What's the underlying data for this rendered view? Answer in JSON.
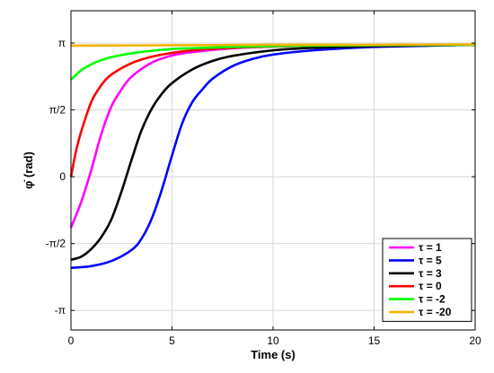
{
  "chart_data": {
    "type": "line",
    "xlabel": "Time (s)",
    "ylabel": "φ̇ (rad)",
    "xlim": [
      0,
      20
    ],
    "ylim": [
      -3.6,
      3.9
    ],
    "xticks": [
      0,
      5,
      10,
      15,
      20
    ],
    "xtick_labels": [
      "0",
      "5",
      "10",
      "15",
      "20"
    ],
    "yticks": [
      -3.1416,
      -1.5708,
      0,
      1.5708,
      3.1416
    ],
    "ytick_labels": [
      "-π",
      "-π/2",
      "0",
      "π/2",
      "π"
    ],
    "grid": true,
    "legend_position": "bottom-right",
    "series": [
      {
        "name": "τ = 1",
        "color": "#ff00ff",
        "x": [
          0,
          0.5,
          1,
          1.5,
          2,
          2.5,
          3,
          4,
          5,
          6,
          8,
          10,
          12,
          15,
          20
        ],
        "y": [
          -1.2,
          -0.6,
          0.15,
          1.0,
          1.65,
          2.05,
          2.35,
          2.68,
          2.85,
          2.93,
          3.02,
          3.06,
          3.08,
          3.09,
          3.1
        ]
      },
      {
        "name": "τ = 5",
        "color": "#0000ff",
        "x": [
          0,
          1,
          2,
          3,
          3.5,
          4,
          4.5,
          5,
          5.5,
          6,
          6.5,
          7,
          8,
          9,
          10,
          12,
          15,
          20
        ],
        "y": [
          -2.14,
          -2.1,
          -1.98,
          -1.72,
          -1.45,
          -0.98,
          -0.3,
          0.5,
          1.25,
          1.75,
          2.05,
          2.3,
          2.6,
          2.77,
          2.87,
          2.97,
          3.05,
          3.1
        ]
      },
      {
        "name": "τ = 3",
        "color": "#000000",
        "x": [
          0,
          0.5,
          1,
          1.5,
          2,
          2.5,
          3,
          3.5,
          4,
          4.5,
          5,
          6,
          7,
          8,
          10,
          12,
          15,
          20
        ],
        "y": [
          -1.95,
          -1.88,
          -1.7,
          -1.42,
          -1.0,
          -0.35,
          0.4,
          1.1,
          1.6,
          1.95,
          2.2,
          2.52,
          2.72,
          2.84,
          2.97,
          3.03,
          3.07,
          3.1
        ]
      },
      {
        "name": "τ = 0",
        "color": "#ff0000",
        "x": [
          0,
          0.25,
          0.5,
          1,
          1.5,
          2,
          3,
          4,
          5,
          6,
          8,
          10,
          12,
          15,
          20
        ],
        "y": [
          0.0,
          0.6,
          1.05,
          1.75,
          2.15,
          2.4,
          2.67,
          2.82,
          2.91,
          2.97,
          3.03,
          3.06,
          3.08,
          3.09,
          3.1
        ]
      },
      {
        "name": "τ = -2",
        "color": "#00ff00",
        "x": [
          0,
          0.5,
          1,
          1.5,
          2,
          3,
          4,
          5,
          6,
          8,
          10,
          12,
          15,
          20
        ],
        "y": [
          2.28,
          2.5,
          2.64,
          2.74,
          2.81,
          2.9,
          2.96,
          3.0,
          3.02,
          3.05,
          3.07,
          3.08,
          3.09,
          3.1
        ]
      },
      {
        "name": "τ = -20",
        "color": "#f0b400",
        "x": [
          0,
          5,
          10,
          15,
          20
        ],
        "y": [
          3.08,
          3.09,
          3.1,
          3.1,
          3.11
        ]
      }
    ]
  }
}
